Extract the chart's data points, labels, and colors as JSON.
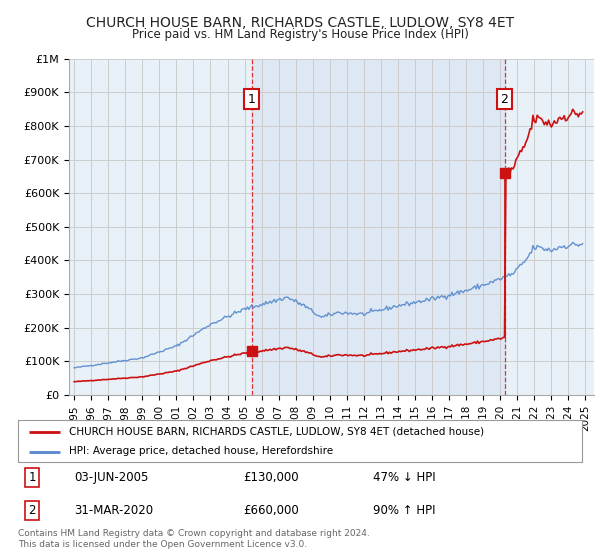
{
  "title": "CHURCH HOUSE BARN, RICHARDS CASTLE, LUDLOW, SY8 4ET",
  "subtitle": "Price paid vs. HM Land Registry's House Price Index (HPI)",
  "ylim": [
    0,
    1000000
  ],
  "yticks": [
    0,
    100000,
    200000,
    300000,
    400000,
    500000,
    600000,
    700000,
    800000,
    900000,
    1000000
  ],
  "ytick_labels": [
    "£0",
    "£100K",
    "£200K",
    "£300K",
    "£400K",
    "£500K",
    "£600K",
    "£700K",
    "£800K",
    "£900K",
    "£1M"
  ],
  "xlim_start": 1994.7,
  "xlim_end": 2025.5,
  "background_color": "#ffffff",
  "plot_bg_color": "#e8f0f8",
  "grid_color": "#cccccc",
  "hpi_line_color": "#5588cc",
  "property_line_color": "#cc1111",
  "point1_year": 2005.42,
  "point1_price": 130000,
  "point2_year": 2020.25,
  "point2_price": 660000,
  "legend_property": "CHURCH HOUSE BARN, RICHARDS CASTLE, LUDLOW, SY8 4ET (detached house)",
  "legend_hpi": "HPI: Average price, detached house, Herefordshire",
  "footer": "Contains HM Land Registry data © Crown copyright and database right 2024.\nThis data is licensed under the Open Government Licence v3.0.",
  "table_row1": [
    "1",
    "03-JUN-2005",
    "£130,000",
    "47% ↓ HPI"
  ],
  "table_row2": [
    "2",
    "31-MAR-2020",
    "£660,000",
    "90% ↑ HPI"
  ]
}
